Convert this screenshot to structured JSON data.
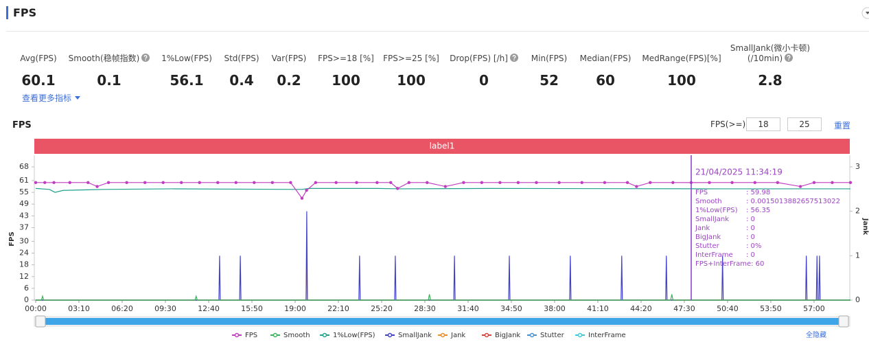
{
  "header": {
    "title": "FPS"
  },
  "metrics": [
    {
      "label": "Avg(FPS)",
      "value": 60.1,
      "help": false
    },
    {
      "label": "Smooth(稳帧指数)",
      "value": 0.1,
      "help": true
    },
    {
      "label": "1%Low(FPS)",
      "value": 56.1,
      "help": false
    },
    {
      "label": "Std(FPS)",
      "value": 0.4,
      "help": false
    },
    {
      "label": "Var(FPS)",
      "value": 0.2,
      "help": false
    },
    {
      "label": "FPS>=18 [%]",
      "value": 100,
      "help": false
    },
    {
      "label": "FPS>=25 [%]",
      "value": 100,
      "help": false
    },
    {
      "label": "Drop(FPS) [/h]",
      "value": 0,
      "help": true
    },
    {
      "label": "Min(FPS)",
      "value": 52,
      "help": false
    },
    {
      "label": "Median(FPS)",
      "value": 60,
      "help": false
    },
    {
      "label": "MedRange(FPS)[%]",
      "value": 100,
      "help": false
    },
    {
      "label": "SmallJank(微小卡顿)\n(/10min)",
      "value": 2.8,
      "help": true
    }
  ],
  "more_link": "查看更多指标",
  "chart_data": {
    "type": "line",
    "title": "FPS",
    "threshold_label": "FPS(>=)",
    "thresholds": [
      18,
      25
    ],
    "reset": "重置",
    "band_label": "label1",
    "y_label": "FPS",
    "y2_label": "Jank",
    "xlim": [
      0,
      3580
    ],
    "xticks": [
      {
        "value": 0,
        "label": "00:00"
      },
      {
        "value": 190,
        "label": "03:10"
      },
      {
        "value": 380,
        "label": "06:20"
      },
      {
        "value": 570,
        "label": "09:30"
      },
      {
        "value": 760,
        "label": "12:40"
      },
      {
        "value": 950,
        "label": "15:50"
      },
      {
        "value": 1140,
        "label": "19:00"
      },
      {
        "value": 1330,
        "label": "22:10"
      },
      {
        "value": 1520,
        "label": "25:20"
      },
      {
        "value": 1710,
        "label": "28:30"
      },
      {
        "value": 1900,
        "label": "31:40"
      },
      {
        "value": 2090,
        "label": "34:50"
      },
      {
        "value": 2280,
        "label": "38:00"
      },
      {
        "value": 2470,
        "label": "41:10"
      },
      {
        "value": 2660,
        "label": "44:20"
      },
      {
        "value": 2850,
        "label": "47:30"
      },
      {
        "value": 3040,
        "label": "50:40"
      },
      {
        "value": 3230,
        "label": "53:50"
      },
      {
        "value": 3420,
        "label": "57:00"
      }
    ],
    "ylim": [
      0,
      68
    ],
    "yticks": [
      0,
      6,
      12,
      18,
      24,
      30,
      37,
      43,
      49,
      55,
      61,
      68
    ],
    "y2lim": [
      0,
      3
    ],
    "y2ticks": [
      0,
      1,
      2,
      3
    ],
    "grid": false,
    "series": [
      {
        "name": "FPS",
        "color": "#c03cc0",
        "axis": "y",
        "markers": true,
        "x": [
          0,
          40,
          80,
          150,
          230,
          270,
          320,
          400,
          480,
          560,
          640,
          720,
          800,
          880,
          960,
          1040,
          1120,
          1170,
          1190,
          1230,
          1320,
          1410,
          1500,
          1560,
          1590,
          1640,
          1720,
          1800,
          1880,
          1960,
          2040,
          2120,
          2200,
          2300,
          2400,
          2500,
          2600,
          2640,
          2700,
          2800,
          2880,
          2960,
          3060,
          3160,
          3260,
          3360,
          3420,
          3500,
          3580
        ],
        "values": [
          60,
          60,
          60,
          60,
          60,
          58,
          60,
          60,
          60,
          60,
          60,
          60,
          60,
          60,
          60,
          60,
          60,
          52,
          56,
          60,
          60,
          60,
          60,
          60,
          57,
          60,
          60,
          58,
          60,
          60,
          60,
          60,
          60,
          60,
          60,
          60,
          60,
          58,
          60,
          60,
          59.98,
          60,
          60,
          60,
          60,
          58,
          60,
          60,
          60
        ]
      },
      {
        "name": "Smooth",
        "color": "#3cb35a",
        "axis": "y",
        "markers": false,
        "x": [
          0,
          25,
          30,
          35,
          700,
          705,
          710,
          1725,
          1730,
          1735,
          2790,
          2795,
          2800,
          3580
        ],
        "values": [
          0,
          0,
          2,
          0,
          0,
          2,
          0,
          0,
          3,
          0,
          0,
          3,
          0,
          0
        ]
      },
      {
        "name": "1%Low(FPS)",
        "color": "#1fa08c",
        "axis": "y",
        "markers": false,
        "x": [
          0,
          60,
          85,
          120,
          300,
          600,
          1170,
          1200,
          1500,
          1600,
          2000,
          3000,
          3580
        ],
        "values": [
          57,
          56.5,
          55,
          56,
          56.5,
          56.8,
          56.5,
          57,
          57,
          56.8,
          57,
          56.8,
          56.8
        ]
      },
      {
        "name": "SmallJank",
        "color": "#4040c8",
        "axis": "y2",
        "markers": false,
        "x": [
          0,
          805,
          808,
          811,
          896,
          899,
          902,
          1188,
          1191,
          1194,
          1420,
          1423,
          1426,
          1577,
          1580,
          1583,
          1837,
          1840,
          1843,
          2078,
          2081,
          2084,
          2346,
          2349,
          2352,
          2572,
          2575,
          2578,
          2768,
          2771,
          2774,
          3015,
          3018,
          3021,
          3383,
          3386,
          3389,
          3430,
          3433,
          3436,
          3441,
          3444,
          3447,
          3580
        ],
        "values": [
          0,
          0,
          1,
          0,
          0,
          1,
          0,
          0,
          2,
          0,
          0,
          1,
          0,
          0,
          1,
          0,
          0,
          1,
          0,
          0,
          1,
          0,
          0,
          1,
          0,
          0,
          1,
          0,
          0,
          1,
          0,
          0,
          1,
          0,
          0,
          1,
          0,
          0,
          1,
          0,
          0,
          1,
          0,
          0
        ]
      },
      {
        "name": "Jank",
        "color": "#f08a24",
        "axis": "y2",
        "markers": false,
        "x": [
          0,
          1188,
          1191,
          1194,
          3580
        ],
        "values": [
          0,
          0,
          1,
          0,
          0
        ]
      },
      {
        "name": "BigJank",
        "color": "#d8403a",
        "axis": "y2",
        "markers": false,
        "x": [
          0,
          3580
        ],
        "values": [
          0,
          0
        ]
      },
      {
        "name": "Stutter",
        "color": "#4a8fd0",
        "axis": "y2",
        "markers": false,
        "x": [
          0,
          3580
        ],
        "values": [
          0,
          0
        ]
      },
      {
        "name": "InterFrame",
        "color": "#3cc8d8",
        "axis": "y2",
        "markers": false,
        "x": [
          0,
          3580
        ],
        "values": [
          0,
          0
        ]
      }
    ],
    "tooltip": {
      "time": "21/04/2025 11:34:19",
      "rows": [
        {
          "name": "FPS",
          "value": ": 59.98"
        },
        {
          "name": "Smooth",
          "value": ": 0.0015013882657513022"
        },
        {
          "name": "1%Low(FPS)",
          "value": ": 56.35"
        },
        {
          "name": "SmallJank",
          "value": ": 0"
        },
        {
          "name": "Jank",
          "value": ": 0"
        },
        {
          "name": "BigJank",
          "value": ": 0"
        },
        {
          "name": "Stutter",
          "value": ": 0%"
        },
        {
          "name": "InterFrame",
          "value": ": 0"
        },
        {
          "name": "FPS+InterFrame: 60"
        }
      ]
    },
    "legend_action": "全隐藏"
  }
}
